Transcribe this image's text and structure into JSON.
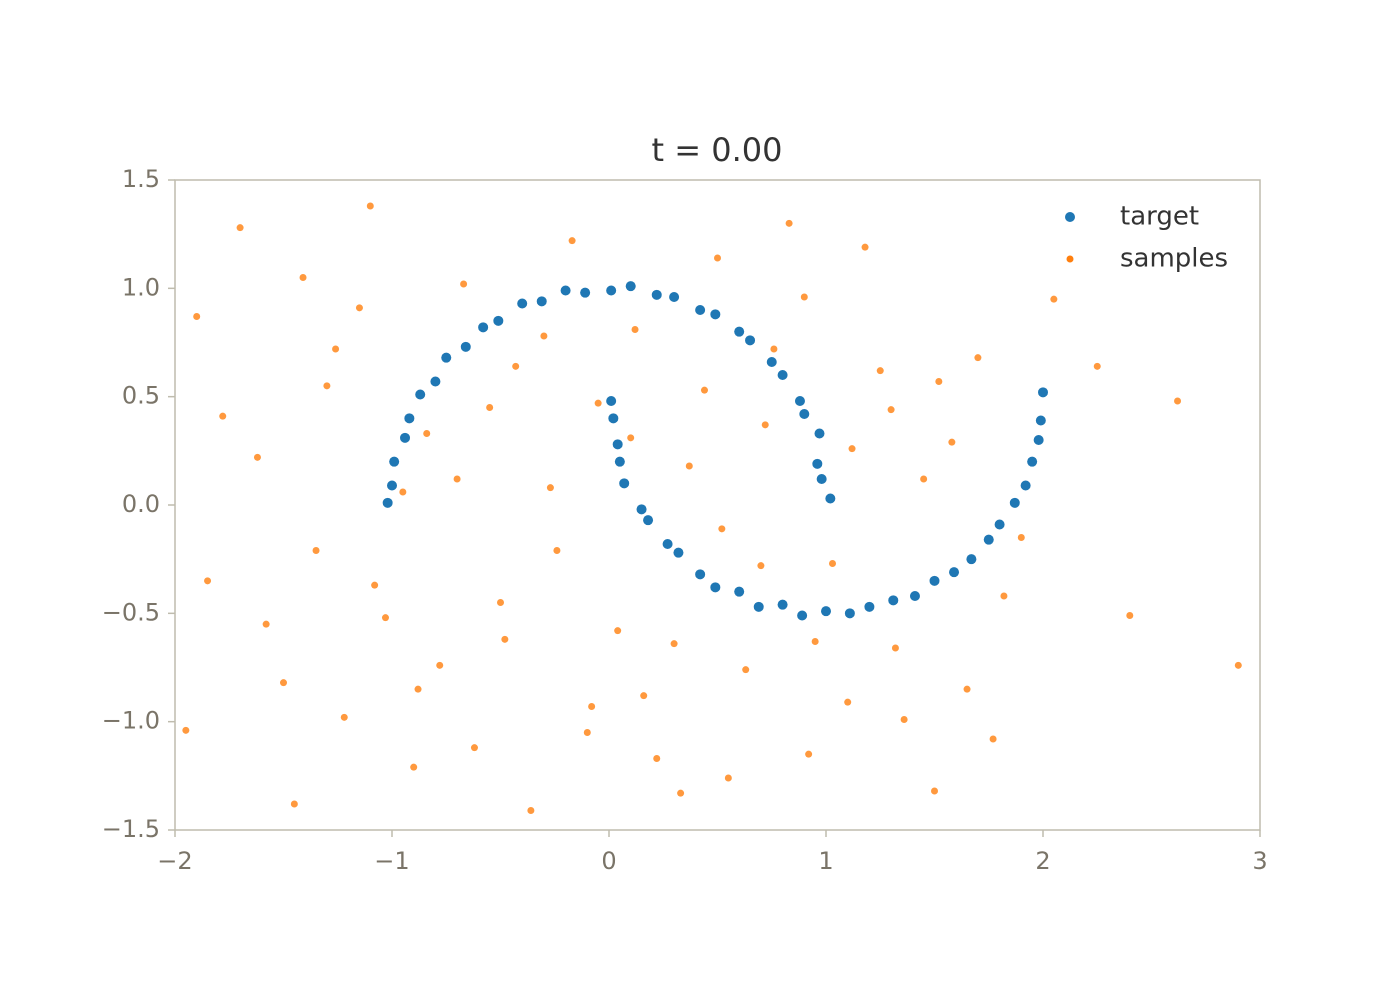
{
  "chart_data": {
    "type": "scatter",
    "title": "t = 0.00",
    "xlim": [
      -2,
      3
    ],
    "ylim": [
      -1.5,
      1.5
    ],
    "xticks": [
      {
        "value": -2,
        "label": "−2"
      },
      {
        "value": -1,
        "label": "−1"
      },
      0,
      1,
      2,
      3
    ],
    "yticks": [
      {
        "value": -1.5,
        "label": "−1.5"
      },
      {
        "value": -1.0,
        "label": "−1.0"
      },
      {
        "value": -0.5,
        "label": "−0.5"
      },
      {
        "value": 0,
        "label": "0.0"
      },
      {
        "value": 0.5,
        "label": "0.5"
      },
      {
        "value": 1.0,
        "label": "1.0"
      },
      {
        "value": 1.5,
        "label": "1.5"
      }
    ],
    "grid": false,
    "legend": "upper right",
    "series": [
      {
        "name": "target",
        "color": "#1f77b4",
        "x": [
          1.02,
          0.98,
          0.96,
          0.97,
          0.9,
          0.88,
          0.8,
          0.75,
          0.65,
          0.6,
          0.49,
          0.42,
          0.3,
          0.22,
          0.1,
          0.01,
          -0.11,
          -0.2,
          -0.31,
          -0.4,
          -0.51,
          -0.58,
          -0.66,
          -0.75,
          -0.8,
          -0.87,
          -0.92,
          -0.94,
          -0.99,
          -1.0,
          -1.02,
          0.01,
          0.02,
          0.04,
          0.05,
          0.07,
          0.15,
          0.18,
          0.27,
          0.32,
          0.42,
          0.49,
          0.6,
          0.69,
          0.8,
          0.89,
          1.0,
          1.11,
          1.2,
          1.31,
          1.41,
          1.5,
          1.59,
          1.67,
          1.75,
          1.8,
          1.87,
          1.92,
          1.95,
          1.98,
          1.99,
          2.0
        ],
        "values": [
          0.03,
          0.12,
          0.19,
          0.33,
          0.42,
          0.48,
          0.6,
          0.66,
          0.76,
          0.8,
          0.88,
          0.9,
          0.96,
          0.97,
          1.01,
          0.99,
          0.98,
          0.99,
          0.94,
          0.93,
          0.85,
          0.82,
          0.73,
          0.68,
          0.57,
          0.51,
          0.4,
          0.31,
          0.2,
          0.09,
          0.01,
          0.48,
          0.4,
          0.28,
          0.2,
          0.1,
          -0.02,
          -0.07,
          -0.18,
          -0.22,
          -0.32,
          -0.38,
          -0.4,
          -0.47,
          -0.46,
          -0.51,
          -0.49,
          -0.5,
          -0.47,
          -0.44,
          -0.42,
          -0.35,
          -0.31,
          -0.25,
          -0.16,
          -0.09,
          0.01,
          0.09,
          0.2,
          0.3,
          0.39,
          0.52
        ]
      },
      {
        "name": "samples",
        "color": "#ff7f0e",
        "x": [
          -1.9,
          -1.7,
          -1.5,
          -1.3,
          -1.1,
          -0.9,
          -0.7,
          -0.5,
          -0.3,
          -0.1,
          0.1,
          0.3,
          0.5,
          0.7,
          0.9,
          1.1,
          1.3,
          1.5,
          1.7,
          1.9,
          -1.85,
          -1.62,
          -1.41,
          -1.22,
          -1.03,
          -0.84,
          -0.62,
          -0.43,
          -0.24,
          -0.05,
          0.16,
          0.37,
          0.55,
          0.76,
          0.95,
          1.18,
          1.36,
          1.58,
          1.77,
          2.05,
          -1.95,
          -1.58,
          -1.35,
          -1.15,
          -0.95,
          -0.78,
          -0.55,
          -0.36,
          -0.17,
          0.04,
          0.22,
          0.44,
          0.63,
          0.83,
          1.03,
          1.25,
          1.45,
          1.65,
          2.25,
          2.62,
          -1.78,
          -1.45,
          -1.26,
          -1.08,
          -0.88,
          -0.67,
          -0.48,
          -0.27,
          -0.08,
          0.12,
          0.33,
          0.52,
          0.72,
          0.92,
          1.12,
          1.32,
          1.52,
          1.82,
          2.4,
          2.9
        ],
        "values": [
          0.87,
          1.28,
          -0.82,
          0.55,
          1.38,
          -1.21,
          0.12,
          -0.45,
          0.78,
          -1.05,
          0.31,
          -0.64,
          1.14,
          -0.28,
          0.96,
          -0.91,
          0.44,
          -1.32,
          0.68,
          -0.15,
          -0.35,
          0.22,
          1.05,
          -0.98,
          -0.52,
          0.33,
          -1.12,
          0.64,
          -0.21,
          0.47,
          -0.88,
          0.18,
          -1.26,
          0.72,
          -0.63,
          1.19,
          -0.99,
          0.29,
          -1.08,
          0.95,
          -1.04,
          -0.55,
          -0.21,
          0.91,
          0.06,
          -0.74,
          0.45,
          -1.41,
          1.22,
          -0.58,
          -1.17,
          0.53,
          -0.76,
          1.3,
          -0.27,
          0.62,
          0.12,
          -0.85,
          0.64,
          0.48,
          0.41,
          -1.38,
          0.72,
          -0.37,
          -0.85,
          1.02,
          -0.62,
          0.08,
          -0.93,
          0.81,
          -1.33,
          -0.11,
          0.37,
          -1.15,
          0.26,
          -0.66,
          0.57,
          -0.42,
          -0.51,
          -0.74
        ]
      }
    ]
  }
}
